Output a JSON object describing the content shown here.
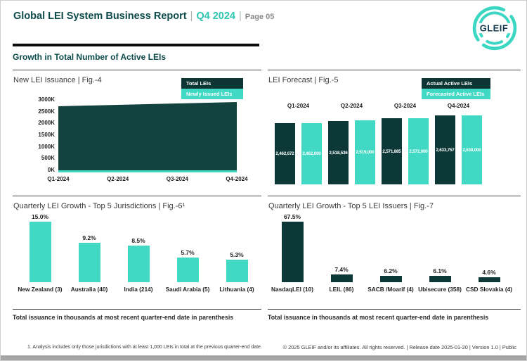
{
  "header": {
    "report_title": "Global LEI System Business Report",
    "sep1": "|",
    "quarter": "Q4 2024",
    "sep2": "|",
    "page_label": "Page 05",
    "section_title": "Growth in Total Number of Active LEIs"
  },
  "logo": {
    "text": "GLEIF"
  },
  "fig4": {
    "title": "New LEI Issuance | Fig.-4",
    "legend": [
      {
        "label": "Total LEIs",
        "color": "#0d3534"
      },
      {
        "label": "Newly Issued LEIs",
        "color": "#41d9c3"
      }
    ],
    "y_ticks": [
      "3000K",
      "2500K",
      "2000K",
      "1500K",
      "1000K",
      "500K",
      "0K"
    ],
    "x_ticks": [
      "Q1-2024",
      "Q2-2024",
      "Q3-2024",
      "Q4-2024"
    ]
  },
  "fig5": {
    "title": "LEI Forecast | Fig.-5",
    "legend": [
      {
        "label": "Actual Active LEIs",
        "color": "#0d3534"
      },
      {
        "label": "Forecasted Active LEIs",
        "color": "#41d9c3"
      }
    ],
    "quarters": [
      {
        "label": "Q1-2024",
        "actual": "2,462,672",
        "forecast": "2,462,000"
      },
      {
        "label": "Q2-2024",
        "actual": "2,518,536",
        "forecast": "2,519,000"
      },
      {
        "label": "Q3-2024",
        "actual": "2,571,885",
        "forecast": "2,572,000"
      },
      {
        "label": "Q4-2024",
        "actual": "2,633,757",
        "forecast": "2,638,000"
      }
    ]
  },
  "fig6": {
    "title": "Quarterly LEI Growth - Top 5 Jurisdictions | Fig.-6¹",
    "bars": [
      {
        "label": "New Zealand (3)",
        "value": "15.0%"
      },
      {
        "label": "Australia (40)",
        "value": "9.2%"
      },
      {
        "label": "India (214)",
        "value": "8.5%"
      },
      {
        "label": "Saudi Arabia (5)",
        "value": "5.7%"
      },
      {
        "label": "Lithuania (4)",
        "value": "5.3%"
      }
    ],
    "caption": "Total issuance in thousands at most recent quarter-end date in parenthesis"
  },
  "fig7": {
    "title": "Quarterly LEI Growth - Top 5 LEI Issuers | Fig.-7",
    "bars": [
      {
        "label": "NasdaqLEI (10)",
        "value": "67.5%"
      },
      {
        "label": "LEIL (86)",
        "value": "7.4%"
      },
      {
        "label": "SACB /Moarif (4)",
        "value": "6.2%"
      },
      {
        "label": "Ubisecure (358)",
        "value": "6.1%"
      },
      {
        "label": "CSD Slovakia (4)",
        "value": "4.6%"
      }
    ],
    "caption": "Total issuance in thousands at most recent quarter-end date in parenthesis"
  },
  "footer": {
    "footnote": "1. Analysis includes only those jurisdictions with at least 1,000 LEIs in total at the previous quarter-end date.",
    "copyright": "© 2025 GLEIF and/or its affiliates. All rights reserved. | Release date 2025-01-20 | Version 1.0 | Public"
  },
  "colors": {
    "dark_teal": "#0d3838",
    "turquoise": "#41d9c3",
    "header_teal": "#0b4a4a",
    "accent_teal": "#2cc6b1"
  },
  "chart_data": [
    {
      "id": "fig4",
      "type": "area",
      "title": "New LEI Issuance | Fig.-4",
      "x": [
        "Q1-2024",
        "Q2-2024",
        "Q3-2024",
        "Q4-2024"
      ],
      "series": [
        {
          "name": "Total LEIs",
          "values": [
            2730000,
            2790000,
            2850000,
            2910000
          ]
        },
        {
          "name": "Newly Issued LEIs",
          "values": [
            70000,
            70000,
            70000,
            70000
          ]
        }
      ],
      "ylim": [
        0,
        3000000
      ],
      "y_tick_labels": [
        "0K",
        "500K",
        "1000K",
        "1500K",
        "2000K",
        "2500K",
        "3000K"
      ],
      "grid": false,
      "legend_position": "top-right"
    },
    {
      "id": "fig5",
      "type": "bar",
      "title": "LEI Forecast | Fig.-5",
      "categories": [
        "Q1-2024",
        "Q2-2024",
        "Q3-2024",
        "Q4-2024"
      ],
      "series": [
        {
          "name": "Actual Active LEIs",
          "values": [
            2462672,
            2518536,
            2571885,
            2633757
          ]
        },
        {
          "name": "Forecasted Active LEIs",
          "values": [
            2462000,
            2519000,
            2572000,
            2638000
          ]
        }
      ],
      "data_labels": true,
      "axis_hidden": true,
      "legend_position": "top-right"
    },
    {
      "id": "fig6",
      "type": "bar",
      "title": "Quarterly LEI Growth - Top 5 Jurisdictions | Fig.-6¹",
      "categories": [
        "New Zealand (3)",
        "Australia (40)",
        "India (214)",
        "Saudi Arabia (5)",
        "Lithuania (4)"
      ],
      "values": [
        15.0,
        9.2,
        8.5,
        5.7,
        5.3
      ],
      "unit": "%",
      "data_labels": true,
      "axis_hidden": true
    },
    {
      "id": "fig7",
      "type": "bar",
      "title": "Quarterly LEI Growth - Top 5 LEI Issuers | Fig.-7",
      "categories": [
        "NasdaqLEI (10)",
        "LEIL (86)",
        "SACB /Moarif (4)",
        "Ubisecure (358)",
        "CSD Slovakia (4)"
      ],
      "values": [
        67.5,
        7.4,
        6.2,
        6.1,
        4.6
      ],
      "unit": "%",
      "data_labels": true,
      "axis_hidden": true
    }
  ]
}
